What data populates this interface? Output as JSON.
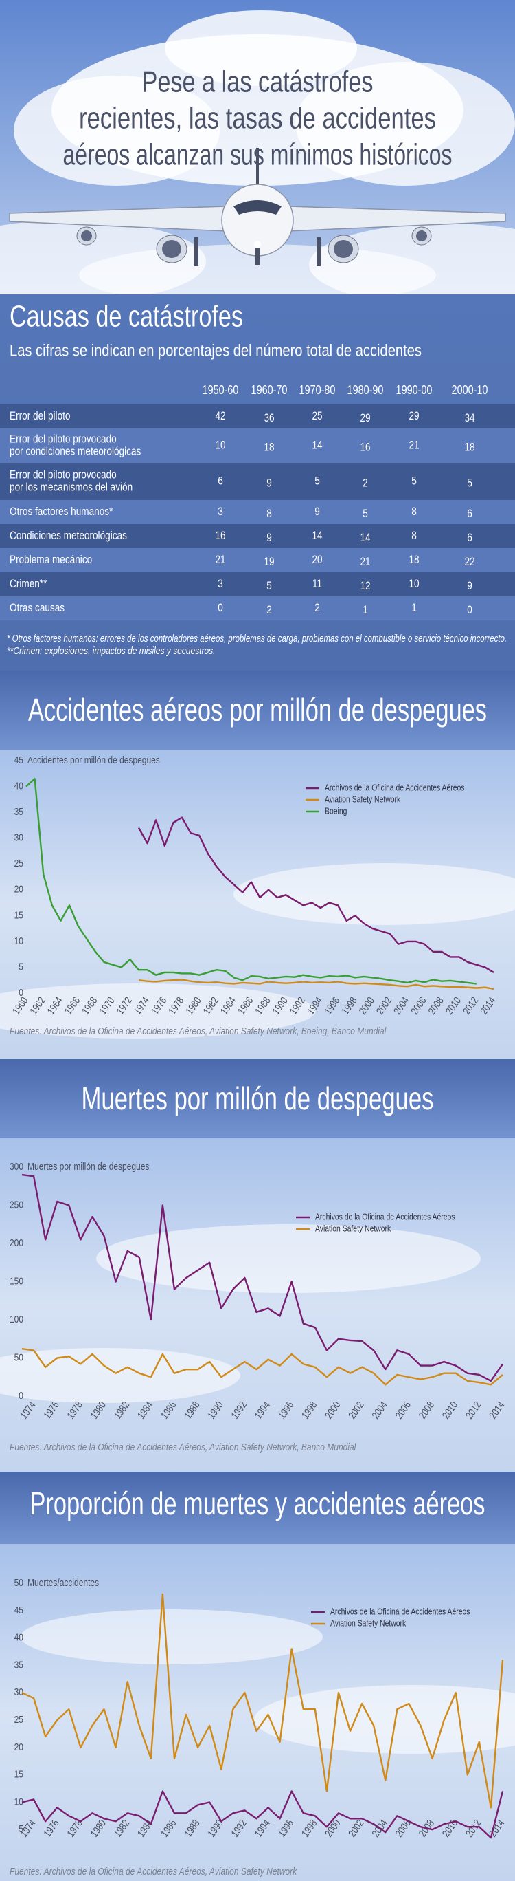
{
  "header": {
    "title": [
      "Pese a las catástrofes",
      "recientes, las tasas de accidentes",
      "aéreos alcanzan sus mínimos históricos"
    ]
  },
  "table": {
    "title": "Causas de catástrofes",
    "subtitle": "Las cifras se indican en porcentajes del número total de accidentes",
    "columns": [
      "1950-60",
      "1960-70",
      "1970-80",
      "1980-90",
      "1990-00",
      "2000-10"
    ],
    "rows": [
      {
        "label": [
          "Error del piloto"
        ],
        "values": [
          42,
          36,
          25,
          29,
          29,
          34
        ]
      },
      {
        "label": [
          "Error del piloto provocado",
          "por condiciones meteorológicas"
        ],
        "values": [
          10,
          18,
          14,
          16,
          21,
          18
        ]
      },
      {
        "label": [
          "Error del piloto provocado",
          "por los mecanismos del avión"
        ],
        "values": [
          6,
          9,
          5,
          2,
          5,
          5
        ]
      },
      {
        "label": [
          "Otros factores humanos*"
        ],
        "values": [
          3,
          8,
          9,
          5,
          8,
          6
        ]
      },
      {
        "label": [
          "Condiciones meteorológicas"
        ],
        "values": [
          16,
          9,
          14,
          14,
          8,
          6
        ]
      },
      {
        "label": [
          "Problema mecánico"
        ],
        "values": [
          21,
          19,
          20,
          21,
          18,
          22
        ]
      },
      {
        "label": [
          "Crimen**"
        ],
        "values": [
          3,
          5,
          11,
          12,
          10,
          9
        ]
      },
      {
        "label": [
          "Otras causas"
        ],
        "values": [
          0,
          2,
          2,
          1,
          1,
          0
        ]
      }
    ],
    "notes": [
      "* Otros factores humanos: errores de los controladores aéreos, problemas de carga, problemas con el combustible o servicio técnico incorrecto.",
      "**Crimen: explosiones, impactos de misiles y secuestros."
    ]
  },
  "chart_data": [
    {
      "type": "line",
      "title": "Accidentes aéreos por millón de despegues",
      "y_label": "Accidentes por millón de despegues",
      "x": [
        1960,
        1961,
        1962,
        1963,
        1964,
        1965,
        1966,
        1967,
        1968,
        1969,
        1970,
        1971,
        1972,
        1973,
        1974,
        1975,
        1976,
        1977,
        1978,
        1979,
        1980,
        1981,
        1982,
        1983,
        1984,
        1985,
        1986,
        1987,
        1988,
        1989,
        1990,
        1991,
        1992,
        1993,
        1994,
        1995,
        1996,
        1997,
        1998,
        1999,
        2000,
        2001,
        2002,
        2003,
        2004,
        2005,
        2006,
        2007,
        2008,
        2009,
        2010,
        2011,
        2012,
        2013,
        2014
      ],
      "xlim": [
        1960,
        2014
      ],
      "xticks": [
        1960,
        1962,
        1964,
        1966,
        1968,
        1970,
        1972,
        1974,
        1976,
        1978,
        1980,
        1982,
        1984,
        1986,
        1988,
        1990,
        1992,
        1994,
        1996,
        1998,
        2000,
        2002,
        2004,
        2006,
        2008,
        2010,
        2012,
        2014
      ],
      "ylim": [
        0,
        45
      ],
      "yticks": [
        0,
        5,
        10,
        15,
        20,
        25,
        30,
        35,
        40,
        45
      ],
      "legend": "upper right",
      "series": [
        {
          "name": "Archivos de la Oficina de Accidentes Aéreos",
          "color": "#7b1d6f",
          "values": [
            null,
            null,
            null,
            null,
            null,
            null,
            null,
            null,
            null,
            null,
            null,
            null,
            null,
            32,
            29,
            33.5,
            28.5,
            33,
            34,
            31,
            30.5,
            27,
            24.5,
            22.5,
            21,
            19.5,
            21.5,
            18.5,
            20,
            18.5,
            19,
            18,
            17,
            17.5,
            16.5,
            17.5,
            17,
            14,
            15,
            13.5,
            12.5,
            12,
            11.5,
            9.5,
            10,
            10,
            9.5,
            8,
            8,
            7,
            7,
            6,
            5.5,
            5,
            4
          ]
        },
        {
          "name": "Aviation Safety Network",
          "color": "#d08a18",
          "values": [
            null,
            null,
            null,
            null,
            null,
            null,
            null,
            null,
            null,
            null,
            null,
            null,
            null,
            2.5,
            2.3,
            2.2,
            2.4,
            2.5,
            2.6,
            2.3,
            2.1,
            2,
            2.1,
            1.9,
            1.8,
            2,
            1.9,
            1.8,
            2.2,
            2,
            1.9,
            2,
            2.2,
            2,
            2.1,
            2,
            2.2,
            1.9,
            1.8,
            1.9,
            1.8,
            1.7,
            1.6,
            1.4,
            1.3,
            1.6,
            1.3,
            1.4,
            1.3,
            1.2,
            1.2,
            1.1,
            1,
            1.1,
            0.8
          ]
        },
        {
          "name": "Boeing",
          "color": "#3a9e35",
          "values": [
            40,
            41.5,
            23,
            17,
            14,
            17,
            13,
            10.5,
            8,
            6,
            5.5,
            5,
            6.5,
            4.5,
            4.5,
            3.5,
            4,
            4,
            3.8,
            3.8,
            3.5,
            4,
            4.5,
            4.3,
            3,
            2.5,
            3.3,
            3.2,
            2.8,
            3,
            3.2,
            3.1,
            3.5,
            3.2,
            3,
            3.3,
            3.2,
            3.4,
            3,
            3.2,
            3,
            2.8,
            2.5,
            2.3,
            2,
            2.4,
            2.1,
            2.6,
            2.3,
            2.4,
            2.2,
            2,
            1.8,
            null,
            null
          ]
        }
      ],
      "source": "Fuentes: Archivos de la Oficina de Accidentes Aéreos, Aviation Safety Network, Boeing, Banco Mundial"
    },
    {
      "type": "line",
      "title": "Muertes por millón de despegues",
      "y_label": "Muertes por millón de despegues",
      "x": [
        1973,
        1974,
        1975,
        1976,
        1977,
        1978,
        1979,
        1980,
        1981,
        1982,
        1983,
        1984,
        1985,
        1986,
        1987,
        1988,
        1989,
        1990,
        1991,
        1992,
        1993,
        1994,
        1995,
        1996,
        1997,
        1998,
        1999,
        2000,
        2001,
        2002,
        2003,
        2004,
        2005,
        2006,
        2007,
        2008,
        2009,
        2010,
        2011,
        2012,
        2013,
        2014
      ],
      "xlim": [
        1973,
        2014
      ],
      "xticks": [
        1974,
        1976,
        1978,
        1980,
        1982,
        1984,
        1986,
        1988,
        1990,
        1992,
        1994,
        1996,
        1998,
        2000,
        2002,
        2004,
        2006,
        2008,
        2010,
        2012,
        2014
      ],
      "ylim": [
        0,
        300
      ],
      "yticks": [
        0,
        50,
        100,
        150,
        200,
        250,
        300
      ],
      "legend": "upper right",
      "series": [
        {
          "name": "Archivos de la Oficina de Accidentes Aéreos",
          "color": "#7b1d6f",
          "values": [
            290,
            288,
            205,
            255,
            250,
            205,
            235,
            210,
            150,
            190,
            182,
            100,
            250,
            140,
            155,
            165,
            175,
            115,
            140,
            155,
            110,
            115,
            105,
            150,
            95,
            90,
            60,
            75,
            73,
            72,
            60,
            35,
            60,
            55,
            40,
            40,
            45,
            40,
            30,
            28,
            20,
            42
          ]
        },
        {
          "name": "Aviation Safety Network",
          "color": "#d08a18",
          "values": [
            62,
            60,
            38,
            50,
            52,
            42,
            55,
            40,
            30,
            38,
            30,
            25,
            55,
            30,
            35,
            35,
            45,
            25,
            35,
            45,
            35,
            48,
            40,
            55,
            42,
            38,
            25,
            38,
            30,
            38,
            30,
            15,
            28,
            25,
            22,
            25,
            30,
            30,
            20,
            18,
            15,
            28
          ]
        }
      ],
      "source": "Fuentes: Archivos de la Oficina de Accidentes Aéreos, Aviation Safety Network, Banco Mundial"
    },
    {
      "type": "line",
      "title": "Proporción de muertes y accidentes aéreos",
      "y_label": "Muertes/accidentes",
      "x": [
        1973,
        1974,
        1975,
        1976,
        1977,
        1978,
        1979,
        1980,
        1981,
        1982,
        1983,
        1984,
        1985,
        1986,
        1987,
        1988,
        1989,
        1990,
        1991,
        1992,
        1993,
        1994,
        1995,
        1996,
        1997,
        1998,
        1999,
        2000,
        2001,
        2002,
        2003,
        2004,
        2005,
        2006,
        2007,
        2008,
        2009,
        2010,
        2011,
        2012,
        2013,
        2014
      ],
      "xlim": [
        1973,
        2014
      ],
      "xticks": [
        1974,
        1976,
        1978,
        1980,
        1982,
        1984,
        1986,
        1988,
        1990,
        1992,
        1994,
        1996,
        1998,
        2000,
        2002,
        2004,
        2006,
        2008,
        2010,
        2012,
        2014
      ],
      "ylim": [
        0,
        50
      ],
      "yticks": [
        5,
        10,
        15,
        20,
        25,
        30,
        35,
        40,
        45,
        50
      ],
      "legend": "upper right",
      "series": [
        {
          "name": "Archivos de la Oficina de Accidentes Aéreos",
          "color": "#7b1d6f",
          "values": [
            10,
            10.5,
            6.5,
            9,
            7.5,
            6.5,
            8,
            7,
            6.5,
            8,
            7.5,
            6,
            12,
            8,
            8,
            9.5,
            10,
            6.5,
            8,
            8.5,
            7,
            9,
            7,
            12,
            8,
            7.5,
            5.5,
            8,
            7,
            7,
            6,
            4.5,
            7.5,
            6.5,
            5.5,
            5,
            6,
            6.5,
            5.5,
            5.5,
            3.5,
            12
          ]
        },
        {
          "name": "Aviation Safety Network",
          "color": "#d08a18",
          "values": [
            30,
            29,
            22,
            25,
            27,
            20,
            24,
            27,
            20,
            32,
            24,
            18,
            48,
            18,
            26,
            20,
            24,
            16,
            27,
            30,
            23,
            26,
            21,
            38,
            27,
            27,
            12,
            30,
            23,
            28,
            24,
            14,
            27,
            28,
            24,
            18,
            25,
            30,
            15,
            21,
            9,
            36
          ]
        }
      ],
      "source": "Fuentes: Archivos de la Oficina de Accidentes Aéreos, Aviation Safety Network"
    }
  ]
}
